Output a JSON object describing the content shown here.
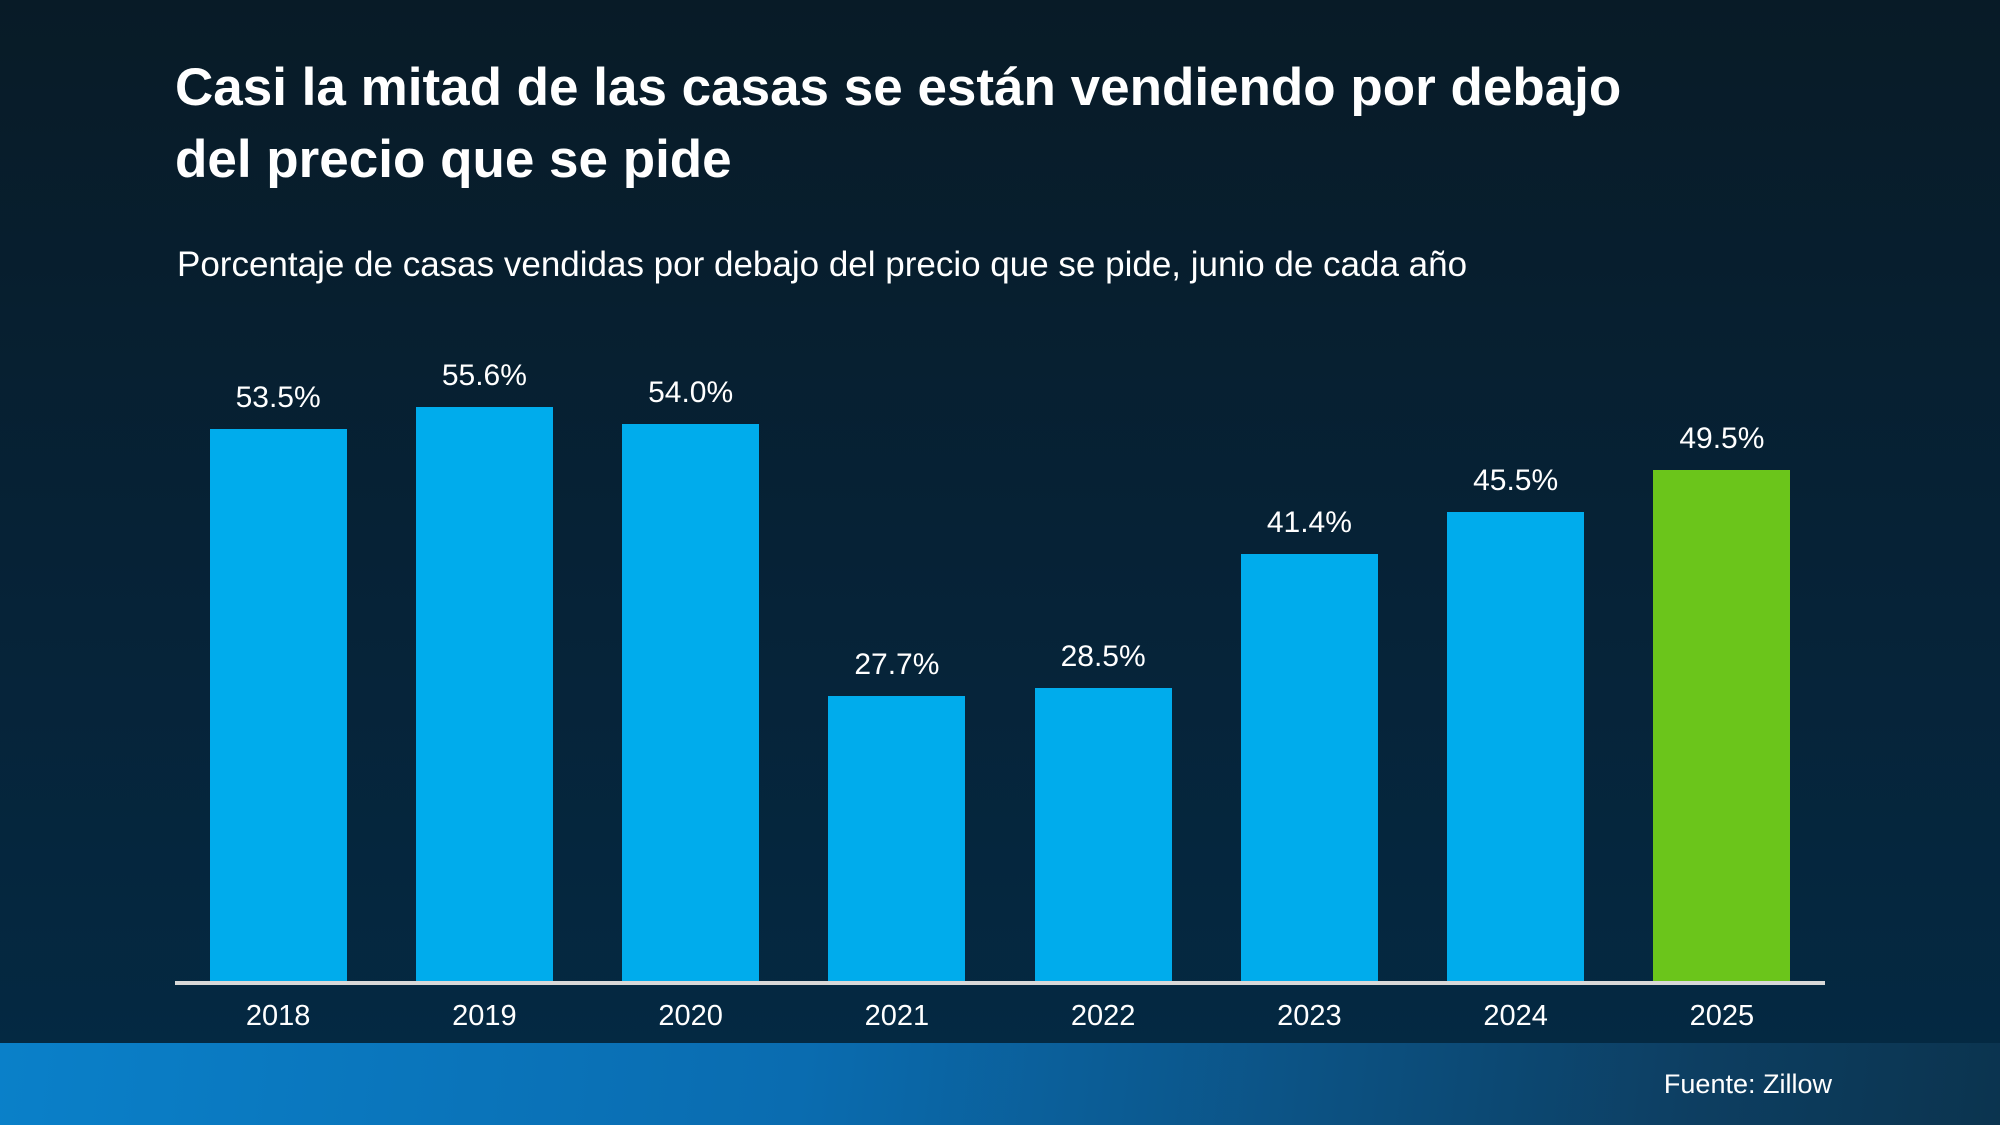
{
  "page": {
    "title": "Casi la mitad de las casas se están vendiendo por debajo del precio que se pide",
    "subtitle": "Porcentaje de casas vendidas por debajo del precio que se pide, junio de cada año",
    "source_label": "Fuente: Zillow"
  },
  "colors": {
    "bar_default": "#00acec",
    "bar_highlight": "#6bc51b",
    "background_top": "#081b27",
    "background_bottom": "#042a44",
    "footer_gradient_left": "#0a80c9",
    "footer_gradient_right": "#0b344f",
    "axis_line": "#d8d8d8",
    "text": "#ffffff"
  },
  "chart_data": {
    "type": "bar",
    "title": "Casi la mitad de las casas se están vendiendo por debajo del precio que se pide",
    "subtitle": "Porcentaje de casas vendidas por debajo del precio que se pide, junio de cada año",
    "categories": [
      "2018",
      "2019",
      "2020",
      "2021",
      "2022",
      "2023",
      "2024",
      "2025"
    ],
    "values": [
      53.5,
      55.6,
      54.0,
      27.7,
      28.5,
      41.4,
      45.5,
      49.5
    ],
    "value_labels": [
      "53.5%",
      "55.6%",
      "54.0%",
      "27.7%",
      "28.5%",
      "41.4%",
      "45.5%",
      "49.5%"
    ],
    "highlight_index": 7,
    "xlabel": "",
    "ylabel": "",
    "ylim": [
      0,
      55.6
    ],
    "grid": false,
    "legend": false,
    "annotations": [],
    "source": "Fuente: Zillow"
  }
}
